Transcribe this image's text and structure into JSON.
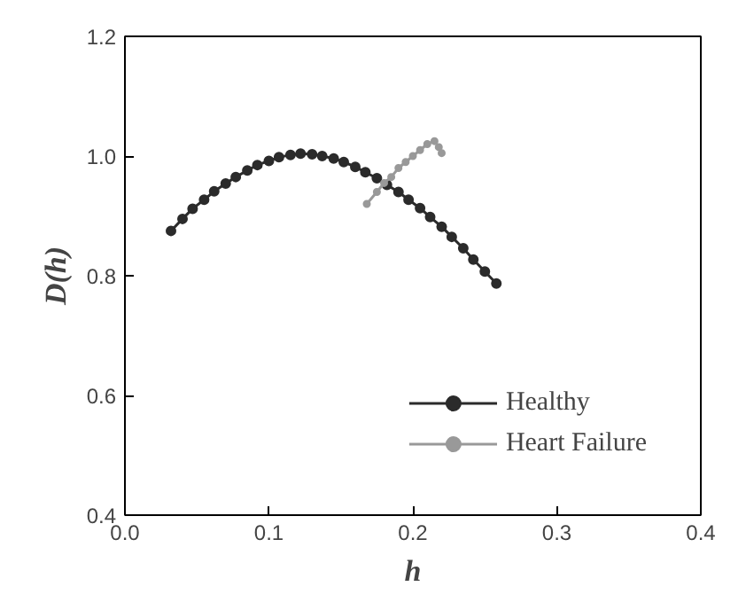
{
  "chart_data": {
    "type": "line",
    "xlabel": "h",
    "ylabel": "D(h)",
    "xlim": [
      0.0,
      0.4
    ],
    "ylim": [
      0.4,
      1.2
    ],
    "xticks": [
      {
        "value": 0,
        "label": "0.0"
      },
      0.1,
      0.2,
      0.3,
      0.4
    ],
    "yticks": [
      0.4,
      0.6,
      0.8,
      {
        "value": 1,
        "label": "1.0"
      },
      1.2
    ],
    "grid": false,
    "legend": "bottom right",
    "marker": "circle",
    "line_style": "solid",
    "series": [
      {
        "name": "Healthy",
        "color": "#2b2b2b",
        "x": [
          0.032,
          0.04,
          0.047,
          0.055,
          0.062,
          0.07,
          0.077,
          0.085,
          0.092,
          0.1,
          0.107,
          0.115,
          0.122,
          0.13,
          0.137,
          0.145,
          0.152,
          0.16,
          0.167,
          0.175,
          0.182,
          0.19,
          0.197,
          0.205,
          0.212,
          0.22,
          0.227,
          0.235,
          0.242,
          0.25,
          0.258
        ],
        "values": [
          0.875,
          0.895,
          0.912,
          0.927,
          0.941,
          0.954,
          0.965,
          0.976,
          0.985,
          0.992,
          0.998,
          1.002,
          1.004,
          1.003,
          1.0,
          0.996,
          0.99,
          0.982,
          0.973,
          0.963,
          0.952,
          0.94,
          0.927,
          0.913,
          0.898,
          0.882,
          0.865,
          0.846,
          0.827,
          0.807,
          0.787
        ]
      },
      {
        "name": "Heart Failure",
        "color": "#999999",
        "x": [
          0.168,
          0.175,
          0.18,
          0.185,
          0.19,
          0.195,
          0.2,
          0.205,
          0.21,
          0.215,
          0.218,
          0.22
        ],
        "values": [
          0.92,
          0.94,
          0.955,
          0.965,
          0.98,
          0.99,
          1.0,
          1.01,
          1.02,
          1.025,
          1.015,
          1.005
        ]
      }
    ]
  }
}
